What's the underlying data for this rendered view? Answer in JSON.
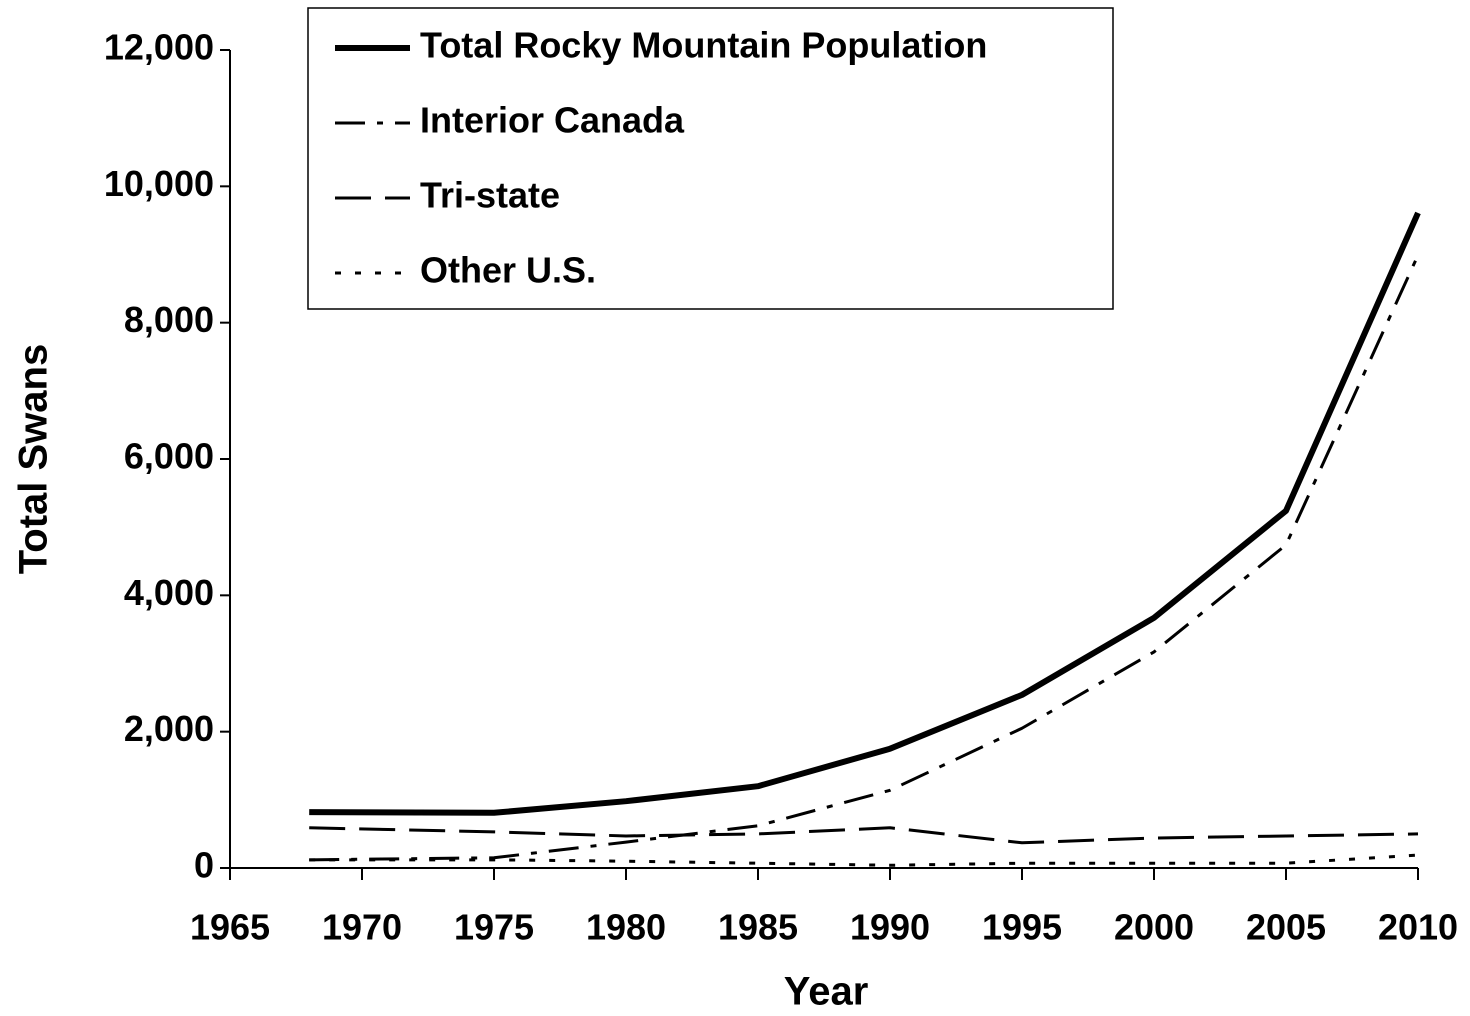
{
  "chart_data": {
    "type": "line",
    "x": [
      1968,
      1975,
      1980,
      1985,
      1990,
      1995,
      2000,
      2005,
      2010
    ],
    "series": [
      {
        "name": "Total Rocky Mountain Population",
        "color": "#000000",
        "style": "solid",
        "values": [
          820,
          810,
          980,
          1200,
          1750,
          2540,
          3670,
          5240,
          9610
        ]
      },
      {
        "name": "Interior Canada",
        "color": "#000000",
        "style": "dashdot",
        "values": [
          120,
          150,
          380,
          620,
          1140,
          2050,
          3170,
          4740,
          8990
        ]
      },
      {
        "name": "Tri-state",
        "color": "#000000",
        "style": "dash",
        "values": [
          590,
          530,
          470,
          500,
          590,
          370,
          440,
          470,
          500
        ]
      },
      {
        "name": "Other U.S.",
        "color": "#000000",
        "style": "dot",
        "values": [
          120,
          120,
          100,
          70,
          40,
          70,
          70,
          70,
          190
        ]
      }
    ],
    "xlabel": "Year",
    "ylabel": "Total Swans",
    "xlim": [
      1965,
      2010
    ],
    "xticks": [
      1965,
      1970,
      1975,
      1980,
      1985,
      1990,
      1995,
      2000,
      2005,
      2010
    ],
    "ylim": [
      0,
      12000
    ],
    "yticks": [
      0,
      {
        "value": 2000,
        "label": "2,000"
      },
      {
        "value": 4000,
        "label": "4,000"
      },
      {
        "value": 6000,
        "label": "6,000"
      },
      {
        "value": 8000,
        "label": "8,000"
      },
      {
        "value": 10000,
        "label": "10,000"
      },
      {
        "value": 12000,
        "label": "12,000"
      }
    ],
    "legend": "top-left"
  }
}
